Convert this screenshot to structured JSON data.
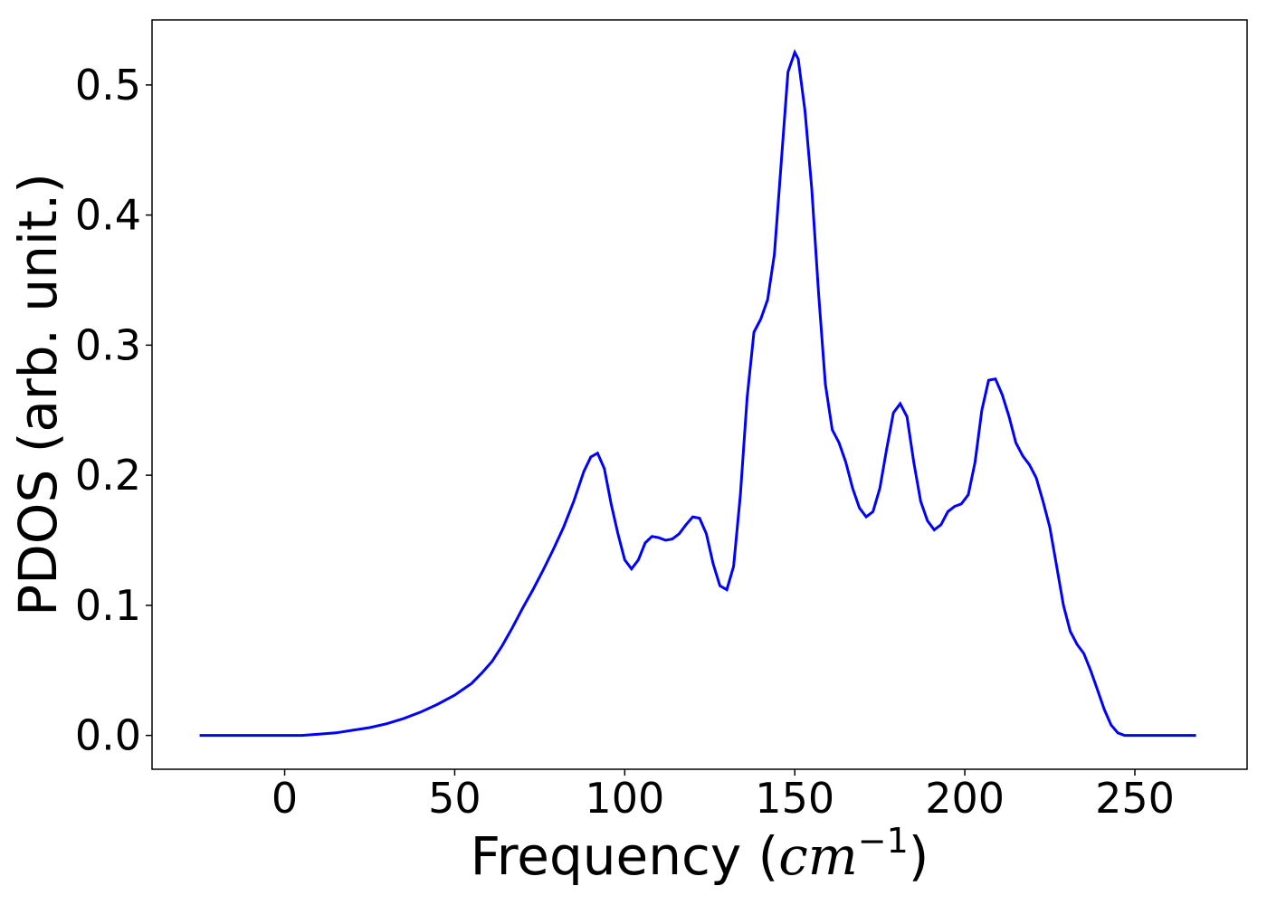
{
  "chart_data": {
    "type": "line",
    "title": "",
    "xlabel_main": "Frequency (",
    "xlabel_math": "cm",
    "xlabel_sup": "−1",
    "xlabel_close": ")",
    "ylabel": "PDOS (arb. unit.)",
    "xlim": [
      -39,
      283
    ],
    "ylim": [
      -0.026,
      0.55
    ],
    "xticks": [
      0,
      50,
      100,
      150,
      200,
      250
    ],
    "xtick_labels": [
      "0",
      "50",
      "100",
      "150",
      "200",
      "250"
    ],
    "yticks": [
      0.0,
      0.1,
      0.2,
      0.3,
      0.4,
      0.5
    ],
    "ytick_labels": [
      "0.0",
      "0.1",
      "0.2",
      "0.3",
      "0.4",
      "0.5"
    ],
    "grid": false,
    "line_color": "#0000ff",
    "series": [
      {
        "x": [
          -25,
          -15,
          -5,
          0,
          5,
          10,
          15,
          20,
          25,
          30,
          35,
          40,
          45,
          50,
          55,
          58,
          61,
          64,
          67,
          70,
          73,
          76,
          79,
          82,
          85,
          88,
          90,
          92,
          94,
          96,
          98,
          100,
          102,
          104,
          106,
          108,
          110,
          112,
          114,
          116,
          118,
          120,
          122,
          124,
          126,
          128,
          130,
          132,
          134,
          136,
          138,
          140,
          142,
          144,
          146,
          148,
          150,
          151,
          153,
          155,
          157,
          159,
          161,
          163,
          165,
          167,
          169,
          171,
          173,
          175,
          177,
          179,
          181,
          183,
          185,
          187,
          189,
          191,
          193,
          195,
          197,
          199,
          201,
          203,
          205,
          207,
          209,
          211,
          213,
          215,
          217,
          219,
          221,
          223,
          225,
          227,
          229,
          231,
          233,
          235,
          237,
          239,
          241,
          243,
          245,
          247,
          250,
          255,
          260,
          268
        ],
        "y": [
          0.0,
          0.0,
          0.0,
          0.0,
          0.0,
          0.001,
          0.002,
          0.004,
          0.006,
          0.009,
          0.013,
          0.018,
          0.024,
          0.031,
          0.04,
          0.048,
          0.057,
          0.069,
          0.083,
          0.098,
          0.112,
          0.127,
          0.143,
          0.16,
          0.18,
          0.203,
          0.214,
          0.217,
          0.205,
          0.178,
          0.155,
          0.135,
          0.128,
          0.135,
          0.148,
          0.153,
          0.152,
          0.15,
          0.151,
          0.155,
          0.162,
          0.168,
          0.167,
          0.155,
          0.132,
          0.115,
          0.112,
          0.13,
          0.185,
          0.26,
          0.31,
          0.32,
          0.335,
          0.37,
          0.44,
          0.51,
          0.525,
          0.52,
          0.48,
          0.42,
          0.34,
          0.27,
          0.235,
          0.225,
          0.21,
          0.19,
          0.175,
          0.168,
          0.172,
          0.19,
          0.22,
          0.248,
          0.255,
          0.245,
          0.21,
          0.18,
          0.165,
          0.158,
          0.162,
          0.172,
          0.176,
          0.178,
          0.185,
          0.21,
          0.25,
          0.273,
          0.274,
          0.262,
          0.245,
          0.225,
          0.215,
          0.208,
          0.198,
          0.18,
          0.16,
          0.13,
          0.1,
          0.08,
          0.07,
          0.063,
          0.05,
          0.035,
          0.02,
          0.008,
          0.002,
          0.0,
          0.0,
          0.0,
          0.0,
          0.0
        ]
      }
    ]
  }
}
